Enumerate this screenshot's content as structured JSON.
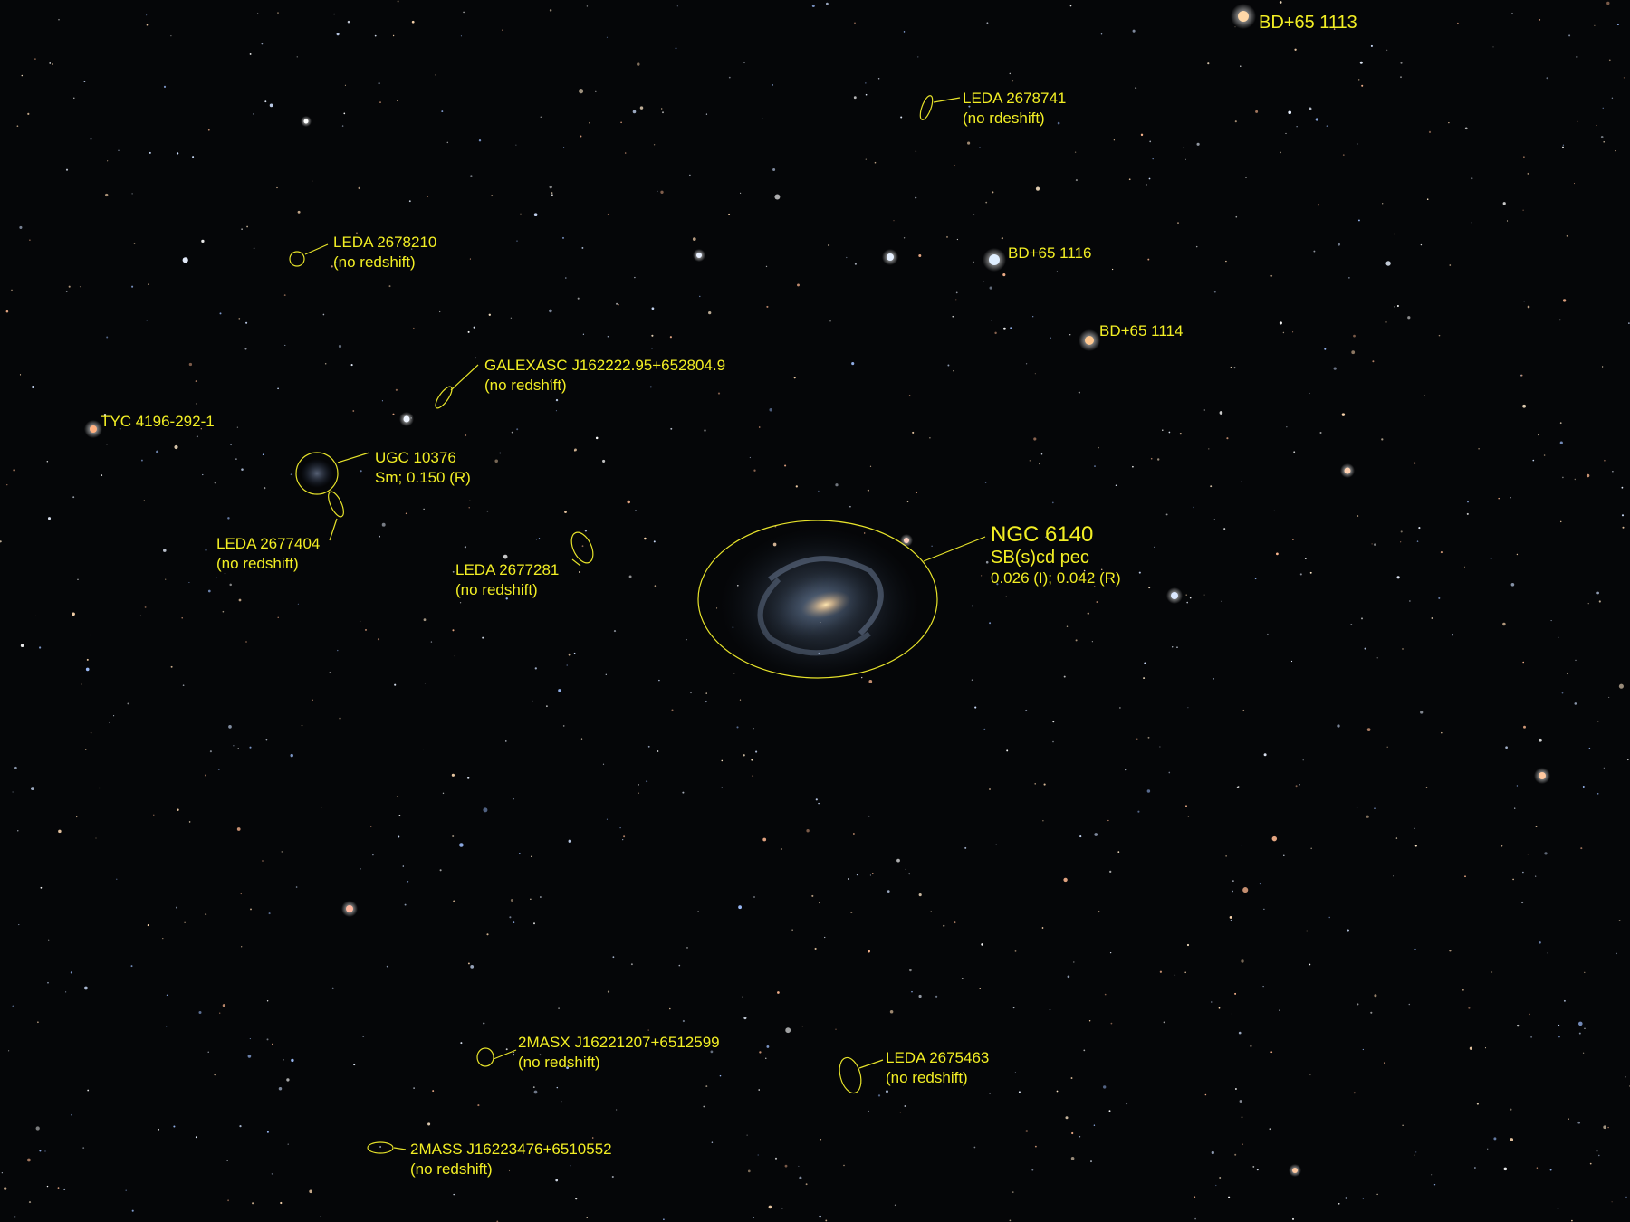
{
  "colors": {
    "sky": "#050608",
    "annotation": "#e6e22a",
    "text": "#f2ee24"
  },
  "stars": {
    "bd65_1113": "BD+65  1113",
    "bd65_1116": "BD+65  1116",
    "bd65_1114": "BD+65  1114",
    "tyc": "TYC 4196-292-1"
  },
  "galaxies": {
    "ngc6140": {
      "name": "NGC 6140",
      "type": "SB(s)cd pec",
      "redshift": "0.026 (I);  0.042 (R)"
    },
    "ugc10376": {
      "name": "UGC 10376",
      "info": "Sm; 0.150 (R)"
    },
    "leda2678741": {
      "name": "LEDA 2678741",
      "note": "(no rdeshift)"
    },
    "leda2678210": {
      "name": "LEDA 2678210",
      "note": "(no redshift)"
    },
    "galexasc": {
      "name": "GALEXASC J162222.95+652804.9",
      "note": "(no redshift)"
    },
    "leda2677404": {
      "name": "LEDA 2677404",
      "note": "(no redshift)"
    },
    "leda2677281": {
      "name": "LEDA 2677281",
      "note": "(no redshift)"
    },
    "twomasx": {
      "name": "2MASX J16221207+6512599",
      "note": "(no redshift)"
    },
    "leda2675463": {
      "name": "LEDA 2675463",
      "note": "(no redshift)"
    },
    "twomass": {
      "name": "2MASS J16223476+6510552",
      "note": "(no redshift)"
    }
  }
}
